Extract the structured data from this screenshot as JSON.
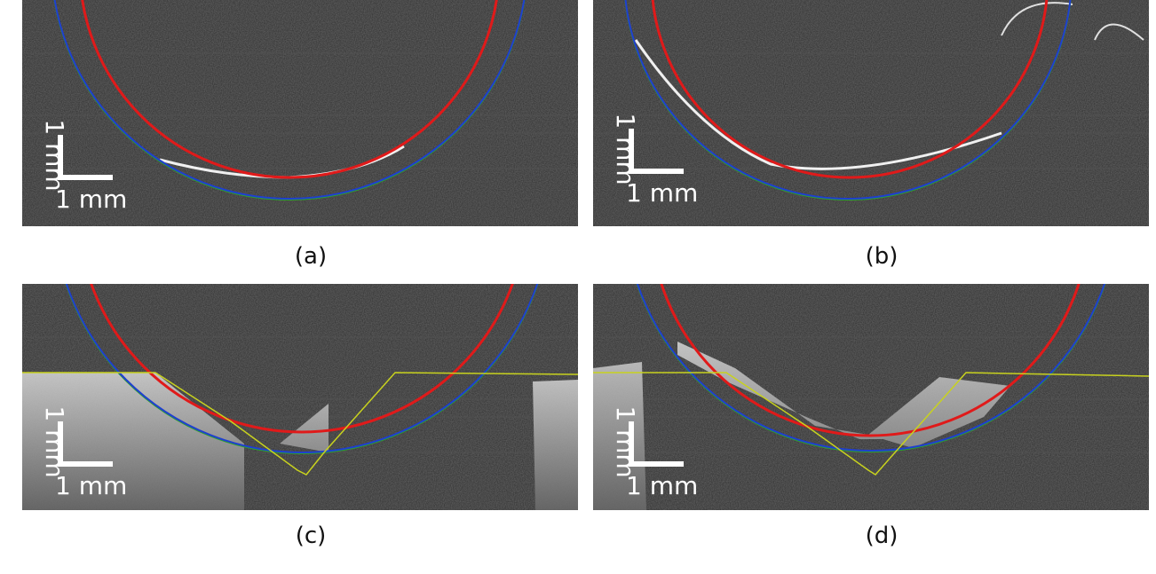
{
  "figure": {
    "panels": [
      {
        "caption": "(a)",
        "scale_x": "1 mm",
        "scale_y": "1 mm"
      },
      {
        "caption": "(b)",
        "scale_x": "1 mm",
        "scale_y": "1 mm"
      },
      {
        "caption": "(c)",
        "scale_x": "1 mm",
        "scale_y": "1 mm"
      },
      {
        "caption": "(d)",
        "scale_x": "1 mm",
        "scale_y": "1 mm"
      }
    ]
  }
}
